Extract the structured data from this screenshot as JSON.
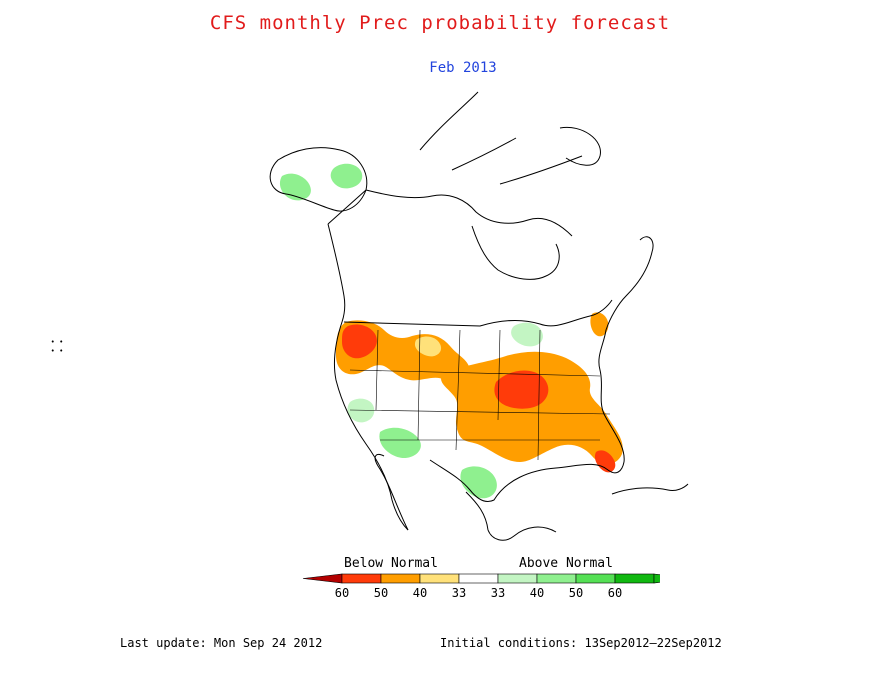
{
  "title": "CFS monthly Prec probability forecast",
  "subtitle": "Feb 2013",
  "colors": {
    "title": "#e11b1b",
    "subtitle": "#2244dd",
    "below": [
      "#d90000",
      "#ff3b0a",
      "#ff9e00",
      "#ffe17a"
    ],
    "above": [
      "#c3f5c3",
      "#8ff08f",
      "#55e055",
      "#11b811"
    ],
    "coast": "#000000"
  },
  "legend": {
    "below_label": "Below Normal",
    "above_label": "Above Normal",
    "ticks": [
      "60",
      "50",
      "40",
      "33",
      "33",
      "40",
      "50",
      "60"
    ]
  },
  "map": {
    "category_levels": [
      "60",
      "50",
      "40",
      "33"
    ]
  },
  "footer": {
    "last_update": "Last update: Mon Sep 24 2012",
    "initial_conditions": "Initial conditions: 13Sep2012—22Sep2012"
  },
  "side_glyph": "• • • •"
}
